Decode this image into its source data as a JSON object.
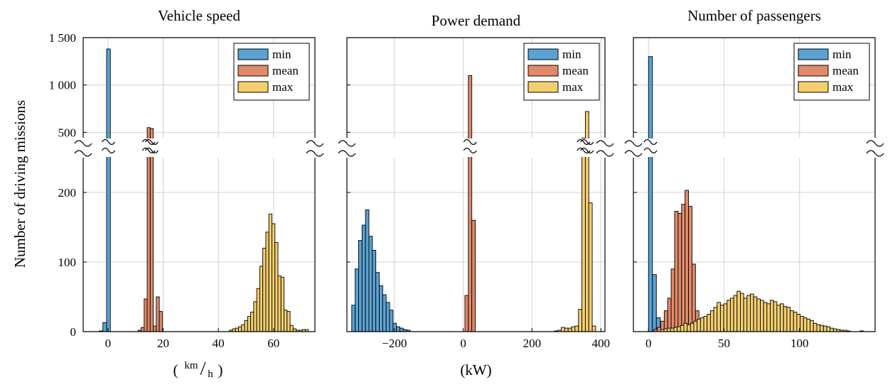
{
  "figure": {
    "ylabel": "Number of driving missions",
    "series_names": [
      "min",
      "mean",
      "max"
    ],
    "colors": {
      "min": "#5AA2D2",
      "mean": "#E08A69",
      "max": "#F2CE6E",
      "edge": "#000000",
      "grid": "#d0d0d0"
    }
  },
  "chart_data": [
    {
      "type": "bar",
      "title": "Vehicle speed",
      "xlabel": "(km/h)",
      "xlabel_parts": {
        "open": "(",
        "num": "km",
        "den": "h",
        "close": ")"
      },
      "xlim": [
        -9,
        75
      ],
      "xticks": [
        0,
        20,
        40,
        60
      ],
      "ylim_lower": [
        0,
        300
      ],
      "ylim_upper": [
        300,
        1500
      ],
      "yticks": [
        0,
        100,
        200,
        500,
        1000,
        1500
      ],
      "ytick_labels": [
        "0",
        "100",
        "200",
        "500",
        "1 000",
        "1 500"
      ],
      "grid": true,
      "legend": "top-right",
      "axis_break": "between 300 and 400 on the y-axis",
      "series": [
        {
          "name": "min",
          "bin_width": 1.35,
          "bins": [
            [
              -3.2,
              1
            ],
            [
              -1.85,
              13
            ],
            [
              -0.5,
              1380
            ]
          ]
        },
        {
          "name": "mean",
          "bin_width": 1.1,
          "bins": [
            [
              10.9,
              2
            ],
            [
              12,
              6
            ],
            [
              13.1,
              47
            ],
            [
              14.2,
              550
            ],
            [
              15.3,
              540
            ],
            [
              16.4,
              8
            ],
            [
              17.5,
              50
            ],
            [
              18.6,
              29
            ]
          ]
        },
        {
          "name": "max",
          "bin_width": 1.1,
          "bins": [
            [
              44,
              2
            ],
            [
              45.1,
              4
            ],
            [
              46.2,
              5
            ],
            [
              47.3,
              7
            ],
            [
              48.4,
              10
            ],
            [
              49.5,
              16
            ],
            [
              50.6,
              22
            ],
            [
              51.7,
              28
            ],
            [
              52.8,
              43
            ],
            [
              53.9,
              62
            ],
            [
              55,
              94
            ],
            [
              56.1,
              120
            ],
            [
              57.2,
              143
            ],
            [
              58.3,
              169
            ],
            [
              59.4,
              155
            ],
            [
              60.5,
              128
            ],
            [
              61.6,
              80
            ],
            [
              62.7,
              78
            ],
            [
              63.8,
              31
            ],
            [
              64.9,
              29
            ],
            [
              66,
              9
            ],
            [
              67.1,
              4
            ],
            [
              68.2,
              2
            ],
            [
              69.3,
              2
            ],
            [
              70.4,
              3
            ],
            [
              71.5,
              3
            ]
          ]
        }
      ]
    },
    {
      "type": "bar",
      "title": "Power demand",
      "xlabel": "(kW)",
      "xlim": [
        -338,
        412
      ],
      "xticks": [
        -200,
        0,
        200,
        400
      ],
      "xtick_labels": [
        "−200",
        "0",
        "200",
        "400"
      ],
      "ylim_lower": [
        0,
        300
      ],
      "ylim_upper": [
        300,
        1500
      ],
      "grid": true,
      "legend": "top-right",
      "series": [
        {
          "name": "min",
          "bin_width": 10,
          "bins": [
            [
              -324,
              38
            ],
            [
              -314,
              90
            ],
            [
              -304,
              131
            ],
            [
              -294,
              153
            ],
            [
              -284,
              175
            ],
            [
              -274,
              137
            ],
            [
              -264,
              117
            ],
            [
              -254,
              85
            ],
            [
              -244,
              66
            ],
            [
              -234,
              53
            ],
            [
              -224,
              42
            ],
            [
              -214,
              31
            ],
            [
              -204,
              12
            ],
            [
              -194,
              7
            ],
            [
              -184,
              5
            ],
            [
              -174,
              3
            ],
            [
              -164,
              2
            ]
          ]
        },
        {
          "name": "mean",
          "bin_width": 10,
          "bins": [
            [
              5,
              52
            ],
            [
              15,
              1100
            ],
            [
              25,
              160
            ]
          ]
        },
        {
          "name": "max",
          "bin_width": 10,
          "bins": [
            [
              265,
              1
            ],
            [
              275,
              2
            ],
            [
              285,
              6
            ],
            [
              295,
              5
            ],
            [
              305,
              5
            ],
            [
              315,
              7
            ],
            [
              325,
              8
            ],
            [
              335,
              32
            ],
            [
              345,
              440
            ],
            [
              355,
              720
            ],
            [
              365,
              185
            ],
            [
              375,
              8
            ]
          ]
        }
      ]
    },
    {
      "type": "bar",
      "title": "Number of passengers",
      "xlabel": "",
      "xlim": [
        -10,
        150
      ],
      "xticks": [
        0,
        50,
        100
      ],
      "ylim_lower": [
        0,
        300
      ],
      "ylim_upper": [
        300,
        1500
      ],
      "grid": true,
      "legend": "top-right",
      "series": [
        {
          "name": "min",
          "bin_width": 2.6,
          "bins": [
            [
              0,
              1300
            ],
            [
              2.6,
              82
            ],
            [
              5.2,
              20
            ],
            [
              7.8,
              3
            ]
          ]
        },
        {
          "name": "mean",
          "bin_width": 2.3,
          "bins": [
            [
              3.5,
              3
            ],
            [
              5.8,
              6
            ],
            [
              8.1,
              15
            ],
            [
              10.4,
              30
            ],
            [
              12.7,
              48
            ],
            [
              15,
              90
            ],
            [
              17.3,
              173
            ],
            [
              19.6,
              170
            ],
            [
              21.9,
              183
            ],
            [
              24.2,
              203
            ],
            [
              26.5,
              180
            ],
            [
              28.8,
              97
            ],
            [
              31.1,
              30
            ],
            [
              33.4,
              16
            ],
            [
              35.7,
              8
            ],
            [
              38,
              3
            ],
            [
              40.3,
              2
            ],
            [
              42.6,
              1
            ]
          ]
        },
        {
          "name": "max",
          "bin_width": 2.2,
          "bins": [
            [
              8,
              3
            ],
            [
              10.2,
              4
            ],
            [
              12.4,
              5
            ],
            [
              14.6,
              5
            ],
            [
              16.8,
              6
            ],
            [
              19,
              7
            ],
            [
              21.2,
              9
            ],
            [
              23.4,
              12
            ],
            [
              25.6,
              10
            ],
            [
              27.8,
              12
            ],
            [
              30,
              15
            ],
            [
              32.2,
              18
            ],
            [
              34.4,
              20
            ],
            [
              36.6,
              22
            ],
            [
              38.8,
              25
            ],
            [
              41,
              30
            ],
            [
              43.2,
              35
            ],
            [
              45.4,
              42
            ],
            [
              47.6,
              38
            ],
            [
              49.8,
              40
            ],
            [
              52,
              45
            ],
            [
              54.2,
              48
            ],
            [
              56.4,
              52
            ],
            [
              58.6,
              58
            ],
            [
              60.8,
              55
            ],
            [
              63,
              48
            ],
            [
              65.2,
              52
            ],
            [
              67.4,
              54
            ],
            [
              69.6,
              50
            ],
            [
              71.8,
              47
            ],
            [
              74,
              45
            ],
            [
              76.2,
              42
            ],
            [
              78.4,
              40
            ],
            [
              80.6,
              45
            ],
            [
              82.8,
              43
            ],
            [
              85,
              38
            ],
            [
              87.2,
              40
            ],
            [
              89.4,
              36
            ],
            [
              91.6,
              35
            ],
            [
              93.8,
              30
            ],
            [
              96,
              28
            ],
            [
              98.2,
              25
            ],
            [
              100.4,
              22
            ],
            [
              102.6,
              20
            ],
            [
              104.8,
              18
            ],
            [
              107,
              16
            ],
            [
              109.2,
              12
            ],
            [
              111.4,
              10
            ],
            [
              113.6,
              9
            ],
            [
              115.8,
              8
            ],
            [
              118,
              7
            ],
            [
              120.2,
              5
            ],
            [
              122.4,
              4
            ],
            [
              124.6,
              3
            ],
            [
              126.8,
              2
            ],
            [
              129,
              2
            ],
            [
              131.2,
              1
            ],
            [
              140,
              1
            ]
          ]
        }
      ]
    }
  ]
}
